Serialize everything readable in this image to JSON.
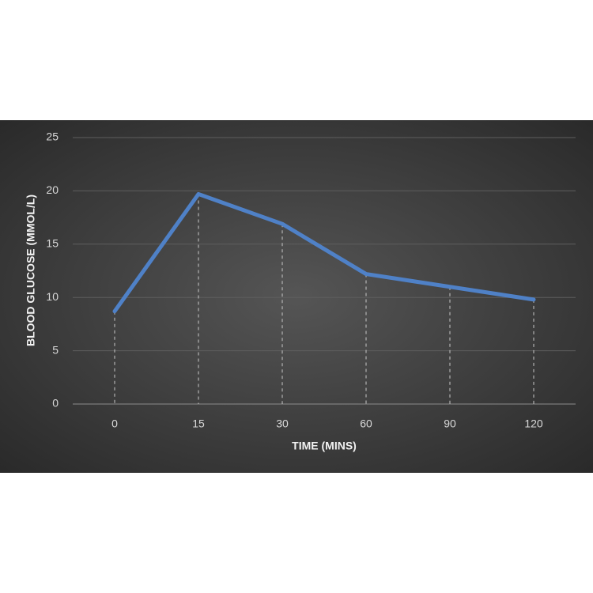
{
  "chart_data": {
    "type": "line",
    "x_label": "TIME (MINS)",
    "y_label": "BLOOD GLUCOSE (MMOL/L)",
    "categories": [
      "0",
      "15",
      "30",
      "60",
      "90",
      "120"
    ],
    "values": [
      8.7,
      19.7,
      16.9,
      12.2,
      11.0,
      9.8
    ],
    "color": "#4f81c7",
    "ylim": [
      0,
      25
    ],
    "yticks": [
      0,
      5,
      10,
      15,
      20,
      25
    ],
    "grid": true,
    "drop_lines": true
  }
}
